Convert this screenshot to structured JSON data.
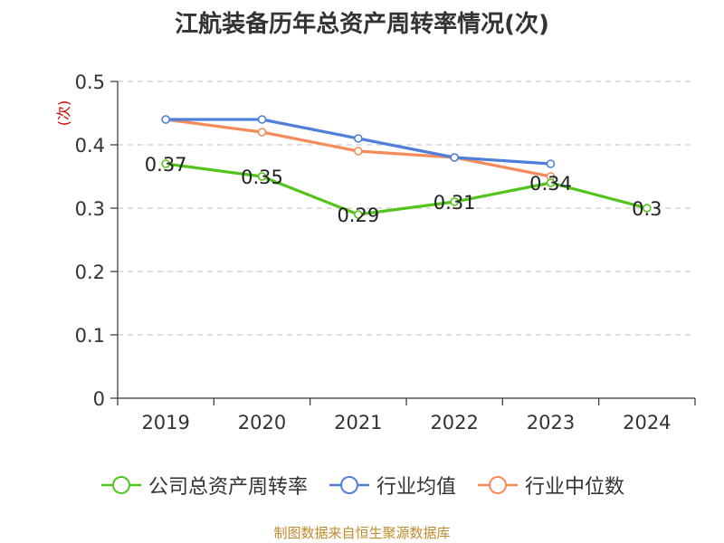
{
  "chart_data": {
    "type": "line",
    "title": "江航装备历年总资产周转率情况(次)",
    "ylabel": "(次)",
    "xlabel": "",
    "categories": [
      "2019",
      "2020",
      "2021",
      "2022",
      "2023",
      "2024"
    ],
    "ylim": [
      0,
      0.5
    ],
    "yticks": [
      "0",
      "0.1",
      "0.2",
      "0.3",
      "0.4",
      "0.5"
    ],
    "grid": true,
    "legend_position": "bottom",
    "series": [
      {
        "name": "公司总资产周转率",
        "color": "#52c41a",
        "values": [
          0.37,
          0.35,
          0.29,
          0.31,
          0.34,
          0.3
        ],
        "labels": [
          "0.37",
          "0.35",
          "0.29",
          "0.31",
          "0.34",
          "0.3"
        ]
      },
      {
        "name": "行业均值",
        "color": "#4f7fd9",
        "values": [
          0.44,
          0.44,
          0.41,
          0.38,
          0.37,
          null
        ]
      },
      {
        "name": "行业中位数",
        "color": "#f58b5b",
        "values": [
          0.44,
          0.42,
          0.39,
          0.38,
          0.35,
          null
        ]
      }
    ]
  },
  "footer": {
    "source": "制图数据来自恒生聚源数据库"
  }
}
